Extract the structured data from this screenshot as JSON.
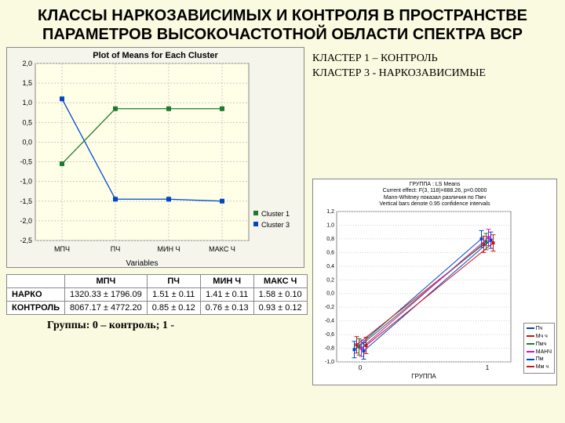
{
  "title": "КЛАССЫ НАРКОЗАВИСИМЫХ И КОНТРОЛЯ В ПРОСТРАНСТВЕ ПАРАМЕТРОВ ВЫСОКОЧАСТОТНОЙ ОБЛАСТИ СПЕКТРА ВСР",
  "annotation": {
    "line1": "КЛАСТЕР 1 – КОНТРОЛЬ",
    "line2": "КЛАСТЕР 3 - НАРКОЗАВИСИМЫЕ"
  },
  "chart1": {
    "type": "line",
    "title": "Plot of Means for Each Cluster",
    "xlabel": "Variables",
    "categories": [
      "МПЧ",
      "ПЧ",
      "МИН Ч",
      "МАКС Ч"
    ],
    "ylim": [
      -2.5,
      2.0
    ],
    "yticks": [
      -2.5,
      -2.0,
      -1.5,
      -1.0,
      -0.5,
      0.0,
      0.5,
      1.0,
      1.5,
      2.0
    ],
    "series": [
      {
        "name": "Cluster 1",
        "color": "#1e7a2e",
        "marker": "square",
        "values": [
          -0.55,
          0.85,
          0.85,
          0.85
        ]
      },
      {
        "name": "Cluster 3",
        "color": "#0046c8",
        "marker": "square",
        "values": [
          1.1,
          -1.45,
          -1.45,
          -1.5
        ]
      }
    ],
    "background_color": "#f5f5ec",
    "plot_background": "#ffffe8",
    "grid_color": "#c8c8c8",
    "title_fontsize": 11,
    "tick_fontsize": 9
  },
  "table1": {
    "columns": [
      "",
      "МПЧ",
      "ПЧ",
      "МИН Ч",
      "МАКС Ч"
    ],
    "rows": [
      [
        "НАРКО",
        "1320.33 ± 1796.09",
        "1.51 ± 0.11",
        "1.41 ± 0.11",
        "1.58 ± 0.10"
      ],
      [
        "КОНТРОЛЬ",
        "8067.17 ± 4772.20",
        "0.85 ± 0.12",
        "0.76 ± 0.13",
        "0.93 ± 0.12"
      ]
    ]
  },
  "caption2": "Группы: 0 – контроль; 1 -",
  "chart2": {
    "type": "line",
    "header": [
      "ГРУППА : LS Means",
      "Current effect:  F(3, 118)=888.26, p=0.0000",
      "Mann-Whitney показал различия по Пмч",
      "Vertical bars denote 0.95 confidence intervals"
    ],
    "xlabel": "ГРУППА",
    "xvalues": [
      0,
      1
    ],
    "ylim": [
      -1.0,
      1.2
    ],
    "yticks": [
      -1.0,
      -0.8,
      -0.6,
      -0.4,
      -0.2,
      0.0,
      0.2,
      0.4,
      0.6,
      0.8,
      1.0,
      1.2
    ],
    "plot_background": "#ffffff",
    "grid_color": "#d0d0d0",
    "series": [
      {
        "name": "Пч",
        "color": "#0046c8",
        "values": [
          -0.82,
          0.8
        ],
        "err": 0.12
      },
      {
        "name": "Мч ч",
        "color": "#c81414",
        "values": [
          -0.75,
          0.72
        ],
        "err": 0.12
      },
      {
        "name": "Пмч",
        "color": "#1e7a2e",
        "values": [
          -0.78,
          0.76
        ],
        "err": 0.12
      },
      {
        "name": "МАНЧ",
        "color": "#c814c8",
        "values": [
          -0.8,
          0.82
        ],
        "err": 0.12
      },
      {
        "name": "Пм",
        "color": "#0046c8",
        "values": [
          -0.84,
          0.78
        ],
        "err": 0.12
      },
      {
        "name": "Мм ч",
        "color": "#c81414",
        "values": [
          -0.76,
          0.74
        ],
        "err": 0.12
      }
    ]
  }
}
